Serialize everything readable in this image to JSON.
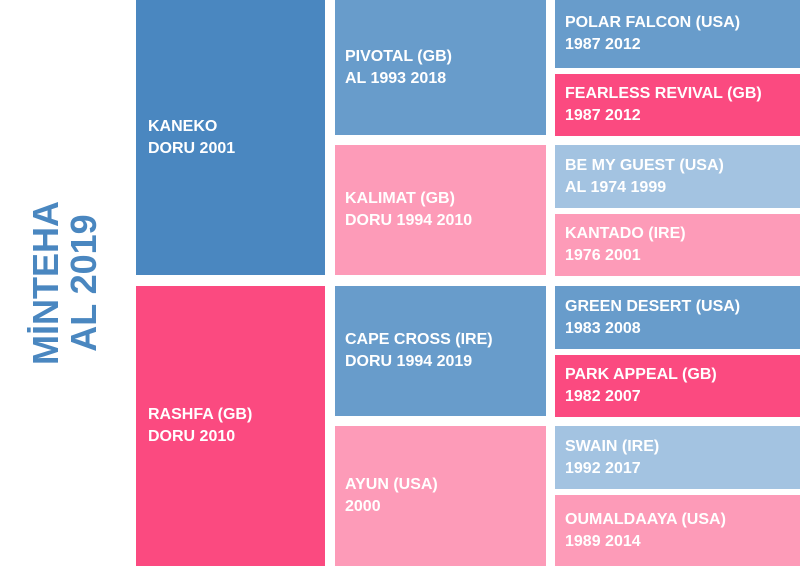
{
  "subject": {
    "name": "MİNTEHA",
    "detail": "AL 2019"
  },
  "pedigree": {
    "sire": {
      "name": "KANEKO",
      "detail": "DORU 2001",
      "color": "#4a87c0"
    },
    "dam": {
      "name": "RASHFA (GB)",
      "detail": "DORU 2010",
      "color": "#fb4a80"
    },
    "sire_sire": {
      "name": "PIVOTAL (GB)",
      "detail": "AL 1993 2018",
      "color": "#689ccb"
    },
    "sire_dam": {
      "name": "KALIMAT (GB)",
      "detail": "DORU 1994 2010",
      "color": "#fd9bb8"
    },
    "dam_sire": {
      "name": "CAPE CROSS (IRE)",
      "detail": "DORU 1994 2019",
      "color": "#689ccb"
    },
    "dam_dam": {
      "name": "AYUN (USA)",
      "detail": "2000",
      "color": "#fd9bb8"
    },
    "ss_sire": {
      "name": "POLAR FALCON (USA)",
      "detail": "1987 2012",
      "color": "#689ccb"
    },
    "ss_dam": {
      "name": "FEARLESS REVIVAL (GB)",
      "detail": "1987 2012",
      "color": "#fb4a80"
    },
    "sd_sire": {
      "name": "BE MY GUEST (USA)",
      "detail": "AL 1974 1999",
      "color": "#a3c3e1"
    },
    "sd_dam": {
      "name": "KANTADO (IRE)",
      "detail": "1976 2001",
      "color": "#fd9bb8"
    },
    "ds_sire": {
      "name": "GREEN DESERT (USA)",
      "detail": "1983 2008",
      "color": "#689ccb"
    },
    "ds_dam": {
      "name": "PARK APPEAL (GB)",
      "detail": "1982 2007",
      "color": "#fb4a80"
    },
    "dd_sire": {
      "name": "SWAIN (IRE)",
      "detail": "1992 2017",
      "color": "#a3c3e1"
    },
    "dd_dam": {
      "name": "OUMALDAAYA (USA)",
      "detail": "1989 2014",
      "color": "#fd9bb8"
    }
  }
}
